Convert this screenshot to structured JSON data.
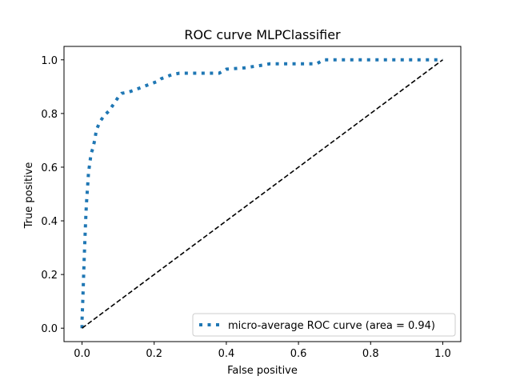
{
  "chart_data": {
    "type": "line",
    "title": "ROC curve MLPClassifier",
    "xlabel": "False positive",
    "ylabel": "True positive",
    "xlim": [
      -0.05,
      1.05
    ],
    "ylim": [
      -0.05,
      1.05
    ],
    "xticks": [
      0.0,
      0.2,
      0.4,
      0.6,
      0.8,
      1.0
    ],
    "yticks": [
      0.0,
      0.2,
      0.4,
      0.6,
      0.8,
      1.0
    ],
    "xtick_labels": [
      "0.0",
      "0.2",
      "0.4",
      "0.6",
      "0.8",
      "1.0"
    ],
    "ytick_labels": [
      "0.0",
      "0.2",
      "0.4",
      "0.6",
      "0.8",
      "1.0"
    ],
    "grid": false,
    "legend_position": "lower right",
    "series": [
      {
        "name": "micro-average ROC curve (area = 0.94)",
        "style": "dotted",
        "color": "#1f77b4",
        "x": [
          0.0,
          0.0,
          0.002,
          0.004,
          0.006,
          0.008,
          0.01,
          0.012,
          0.015,
          0.018,
          0.022,
          0.025,
          0.03,
          0.035,
          0.04,
          0.05,
          0.06,
          0.075,
          0.09,
          0.1,
          0.11,
          0.13,
          0.15,
          0.17,
          0.19,
          0.21,
          0.22,
          0.25,
          0.27,
          0.3,
          0.35,
          0.38,
          0.4,
          0.45,
          0.5,
          0.52,
          0.6,
          0.65,
          0.67,
          0.75,
          0.85,
          0.95,
          1.0
        ],
        "y": [
          0.0,
          0.03,
          0.1,
          0.18,
          0.26,
          0.33,
          0.4,
          0.46,
          0.52,
          0.58,
          0.62,
          0.65,
          0.67,
          0.7,
          0.74,
          0.77,
          0.79,
          0.81,
          0.84,
          0.86,
          0.875,
          0.88,
          0.89,
          0.9,
          0.91,
          0.92,
          0.93,
          0.945,
          0.95,
          0.95,
          0.95,
          0.95,
          0.965,
          0.97,
          0.98,
          0.985,
          0.985,
          0.985,
          1.0,
          1.0,
          1.0,
          1.0,
          1.0
        ]
      },
      {
        "name": "",
        "style": "dashed",
        "color": "#000000",
        "x": [
          0.0,
          1.0
        ],
        "y": [
          0.0,
          1.0
        ]
      }
    ]
  }
}
